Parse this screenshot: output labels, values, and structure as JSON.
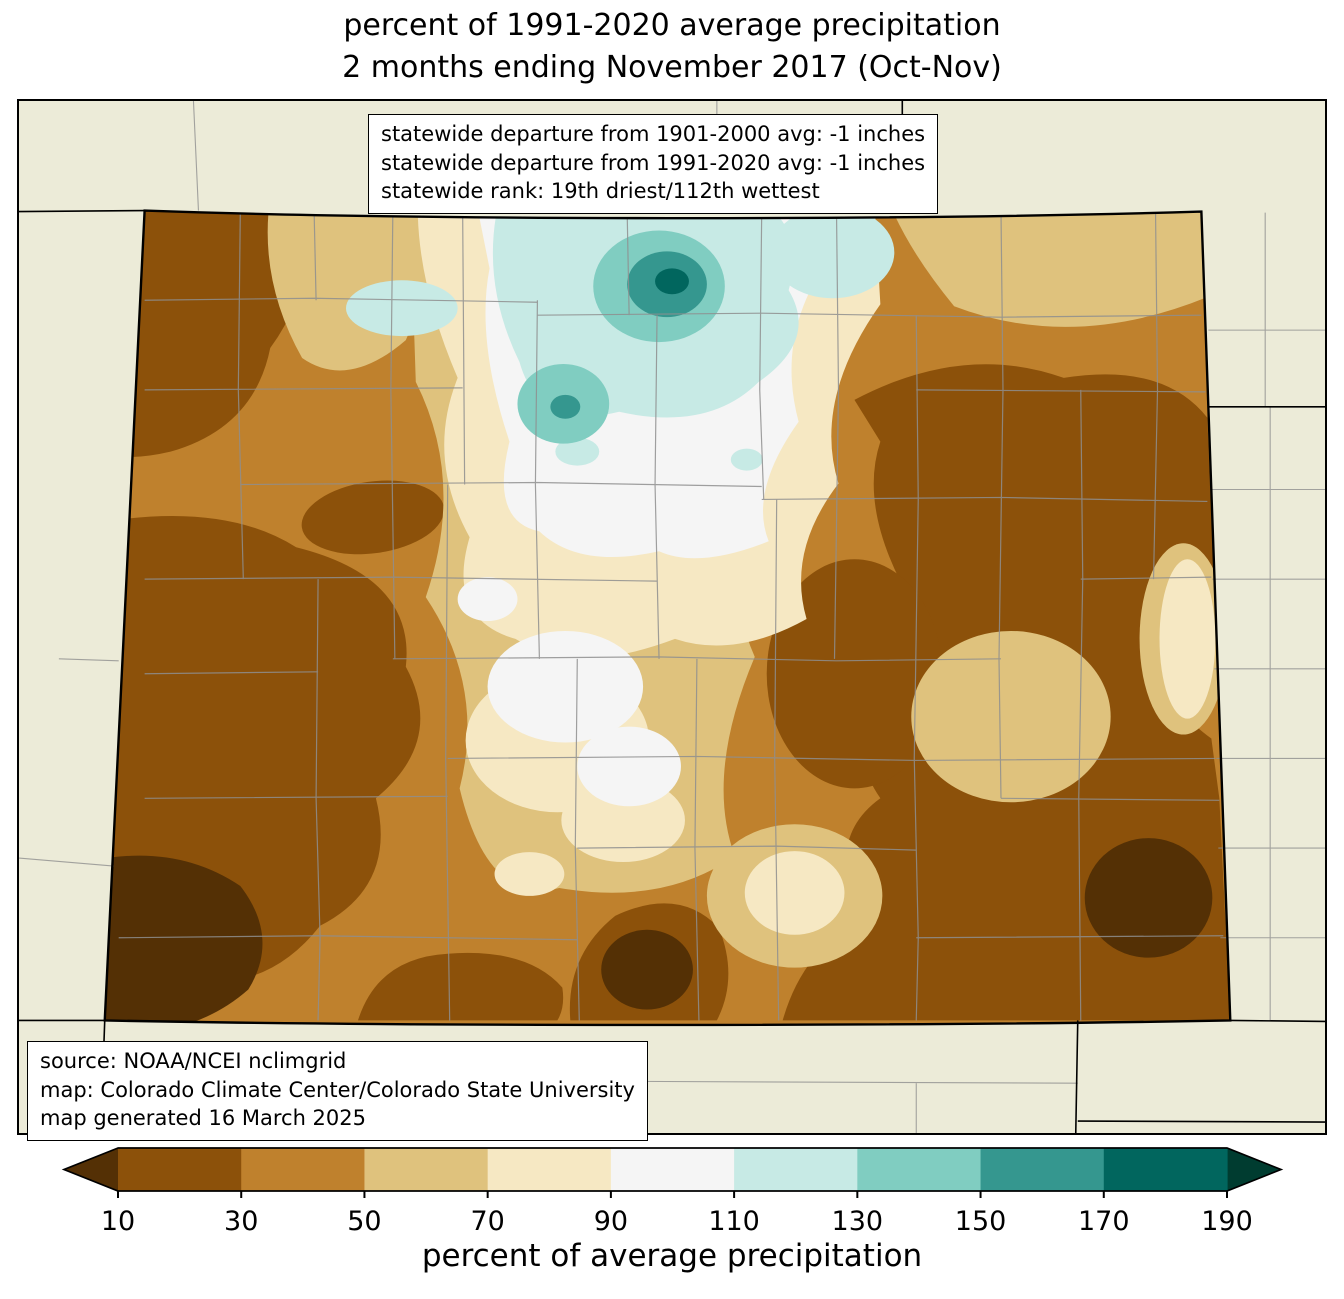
{
  "title": {
    "line1": "percent of 1991-2020 average precipitation",
    "line2": "2 months ending November 2017 (Oct-Nov)"
  },
  "stats_box": {
    "lines": [
      "statewide departure from 1901-2000 avg: -1 inches",
      "statewide departure from 1991-2020 avg: -1 inches",
      "statewide rank: 19th driest/112th wettest"
    ]
  },
  "source_box": {
    "lines": [
      "source: NOAA/NCEI nclimgrid",
      "map: Colorado Climate Center/Colorado State University",
      "map generated 16 March 2025"
    ]
  },
  "colorbar": {
    "label": "percent of average precipitation",
    "ticks": [
      "10",
      "30",
      "50",
      "70",
      "90",
      "110",
      "130",
      "150",
      "170",
      "190"
    ],
    "segments": [
      "#8c510a",
      "#bf812d",
      "#dfc27d",
      "#f6e8c3",
      "#f5f5f5",
      "#c7eae5",
      "#80cdc1",
      "#35978f",
      "#01665e"
    ],
    "under": "#543005",
    "over": "#003c30"
  },
  "palette": {
    "lt10": "#543005",
    "p10_30": "#8c510a",
    "p30_50": "#bf812d",
    "p50_70": "#dfc27d",
    "p70_90": "#f6e8c3",
    "p90_110": "#f5f5f5",
    "p110_130": "#c7eae5",
    "p130_150": "#80cdc1",
    "p150_170": "#35978f",
    "p170_190": "#01665e",
    "map_background": "#ecebd8",
    "county_line": "#8f8f8f",
    "state_line": "#000000"
  }
}
